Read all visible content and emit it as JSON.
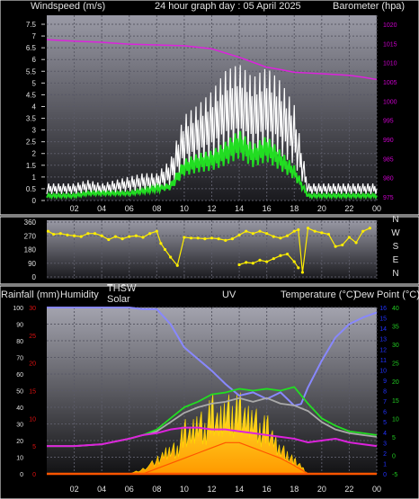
{
  "header": {
    "left_label": "Windspeed (m/s)",
    "center_label": "24 hour graph day : 05 April 2025",
    "right_label": "Barometer (hpa)"
  },
  "lower_header": {
    "rain_label": "Rainfall (mm)",
    "humidity_label": "Humidity",
    "thsw_label": "THSW",
    "solar_label": "Solar",
    "uv_label": "UV",
    "temp_label": "Temperature (°C)",
    "dew_label": "Dew Point (°C)"
  },
  "x_ticks": [
    "02",
    "04",
    "06",
    "08",
    "10",
    "12",
    "14",
    "16",
    "18",
    "20",
    "22",
    "00"
  ],
  "colors": {
    "windspeed": "#ffffff",
    "gust": "#ffffff",
    "avg_wind": "#22dd22",
    "barometer": "#dd22dd",
    "direction": "#ffee00",
    "humidity": "#8888ff",
    "temperature": "#22dd22",
    "thsw": "#aaaaaa",
    "dewpoint": "#dd22dd",
    "solar": "#ffcc00",
    "uv": "#ff5500",
    "rain_axis": "#dd1111",
    "temp_axis": "#22cc22",
    "humidity_axis": "#3344ff",
    "uv_axis": "#2233ff",
    "baro_axis": "#cc00cc"
  },
  "chart_data": [
    {
      "type": "line",
      "title": "24 hour graph day : 05 April 2025",
      "xlabel": "",
      "ylabel": "Windspeed (m/s)",
      "y2label": "Barometer (hpa)",
      "x_hours": [
        0,
        2,
        4,
        6,
        8,
        10,
        12,
        14,
        16,
        18,
        20,
        22,
        24
      ],
      "ylim": [
        0,
        7.5
      ],
      "y_ticks": [
        "0",
        "0.5",
        "1",
        "1.5",
        "2",
        "2.5",
        "3",
        "3.5",
        "4",
        "4.5",
        "5",
        "5.5",
        "6",
        "6.5",
        "7",
        "7.5"
      ],
      "y2lim": [
        975,
        1020
      ],
      "y2_ticks": [
        "975",
        "980",
        "985",
        "990",
        "995",
        "1000",
        "1005",
        "1010",
        "1015",
        "1020"
      ],
      "series": [
        {
          "name": "Windspeed",
          "axis": "left",
          "x": [
            0,
            1,
            2,
            3,
            4,
            5,
            6,
            7,
            8,
            9,
            10,
            11,
            12,
            13,
            14,
            15,
            16,
            17,
            18,
            19,
            20,
            21,
            22,
            23,
            24
          ],
          "values": [
            0.5,
            0.5,
            0.5,
            0.6,
            0.5,
            0.6,
            0.7,
            0.8,
            0.8,
            1.2,
            2.5,
            2.8,
            3.2,
            3.8,
            4.0,
            3.6,
            3.9,
            3.5,
            2.8,
            0.5,
            0.5,
            0.5,
            0.5,
            0.5,
            0.5
          ]
        },
        {
          "name": "Average wind",
          "axis": "left",
          "x": [
            0,
            1,
            2,
            3,
            4,
            5,
            6,
            7,
            8,
            9,
            10,
            11,
            12,
            13,
            14,
            15,
            16,
            17,
            18,
            19,
            20,
            21,
            22,
            23,
            24
          ],
          "values": [
            0.2,
            0.2,
            0.2,
            0.3,
            0.3,
            0.3,
            0.3,
            0.4,
            0.5,
            0.6,
            1.4,
            1.6,
            1.7,
            2.0,
            2.4,
            1.9,
            2.2,
            1.7,
            1.2,
            0.2,
            0.2,
            0.2,
            0.2,
            0.2,
            0.2
          ]
        },
        {
          "name": "Barometer",
          "axis": "right",
          "x": [
            0,
            2,
            4,
            6,
            8,
            10,
            12,
            13,
            14,
            15,
            16,
            17,
            18,
            19,
            20,
            21,
            22,
            23,
            24
          ],
          "values": [
            1016.0,
            1015.6,
            1015.3,
            1014.8,
            1014.6,
            1014.4,
            1013.6,
            1012.5,
            1011.4,
            1010.1,
            1008.8,
            1008.2,
            1007.5,
            1007.3,
            1007.1,
            1006.9,
            1006.7,
            1006.2,
            1005.6
          ]
        }
      ]
    },
    {
      "type": "scatter",
      "title": "",
      "ylabel": "",
      "x_hours": [
        0,
        2,
        4,
        6,
        8,
        10,
        12,
        14,
        16,
        18,
        20,
        22,
        24
      ],
      "ylim": [
        0,
        360
      ],
      "y_ticks": [
        "0",
        "90",
        "180",
        "270",
        "360"
      ],
      "compass_labels": [
        "N",
        "W",
        "S",
        "E",
        "N"
      ],
      "series": [
        {
          "name": "Wind direction",
          "x": [
            0.1,
            0.5,
            1.0,
            1.5,
            2.0,
            2.5,
            3.0,
            3.5,
            4.0,
            4.5,
            5.0,
            5.5,
            6.0,
            6.5,
            7.0,
            7.5,
            8.0,
            8.3,
            8.6,
            9.0,
            9.5,
            10.0,
            10.5,
            11.0,
            11.5,
            12.0,
            12.5,
            13.0,
            13.5,
            14.0,
            14.5,
            15.0,
            15.5,
            16.0,
            16.5,
            17.0,
            17.5,
            18.0,
            18.3,
            18.6,
            19.0,
            19.5,
            20.0,
            20.5,
            21.0,
            21.5,
            22.0,
            22.5,
            23.0,
            23.5
          ],
          "values": [
            300,
            280,
            285,
            275,
            270,
            265,
            285,
            285,
            270,
            245,
            265,
            250,
            265,
            270,
            260,
            285,
            300,
            220,
            180,
            130,
            75,
            260,
            255,
            255,
            250,
            255,
            250,
            240,
            250,
            275,
            300,
            285,
            300,
            285,
            265,
            255,
            270,
            300,
            310,
            30,
            320,
            300,
            290,
            280,
            200,
            210,
            260,
            225,
            300,
            320
          ]
        },
        {
          "name": "Wind direction (secondary)",
          "x": [
            14.0,
            14.5,
            15.0,
            15.5,
            16.0,
            16.5,
            17.0,
            17.5,
            18.0,
            18.3
          ],
          "values": [
            80,
            95,
            90,
            110,
            100,
            120,
            140,
            150,
            100,
            60
          ]
        }
      ]
    },
    {
      "type": "line",
      "title": "",
      "xlabel": "",
      "ylabel": "Humidity",
      "y2label": "Temperature (°C)",
      "x_hours": [
        0,
        2,
        4,
        6,
        8,
        10,
        12,
        14,
        16,
        18,
        20,
        22,
        24
      ],
      "humidity_lim": [
        0,
        100
      ],
      "humidity_ticks": [
        "0",
        "10",
        "20",
        "30",
        "40",
        "50",
        "60",
        "70",
        "80",
        "90",
        "100"
      ],
      "rain_lim": [
        0,
        30
      ],
      "rain_ticks": [
        "0",
        "5",
        "10",
        "15",
        "20",
        "25",
        "30"
      ],
      "uv_lim": [
        0,
        16
      ],
      "uv_ticks": [
        "0",
        "1",
        "2",
        "3",
        "4",
        "5",
        "6",
        "7",
        "8",
        "9",
        "10",
        "11",
        "12",
        "13",
        "14",
        "15",
        "16"
      ],
      "temp_lim": [
        -5,
        40
      ],
      "temp_ticks": [
        "-5",
        "0",
        "5",
        "10",
        "15",
        "20",
        "25",
        "30",
        "35",
        "40"
      ],
      "series": [
        {
          "name": "Humidity",
          "axis": "humidity",
          "x": [
            0,
            2,
            4,
            6,
            7,
            8,
            9,
            10,
            11,
            12,
            13,
            14,
            15,
            16,
            17,
            18,
            18.5,
            19,
            20,
            21,
            22,
            23,
            24
          ],
          "values": [
            100,
            100,
            100,
            100,
            99,
            99,
            90,
            76,
            69,
            62,
            54,
            47,
            49,
            45,
            49,
            41,
            42,
            52,
            68,
            82,
            90,
            94,
            97
          ]
        },
        {
          "name": "Temperature",
          "axis": "temperature",
          "x": [
            0,
            2,
            4,
            6,
            7,
            8,
            9,
            10,
            11,
            12,
            13,
            14,
            15,
            16,
            17,
            18,
            19,
            20,
            21,
            22,
            23,
            24
          ],
          "values": [
            2.5,
            2.5,
            3.0,
            4.5,
            5.5,
            7.0,
            10.0,
            13.0,
            14.5,
            16.5,
            17.0,
            18.0,
            17.5,
            18.0,
            17.5,
            18.5,
            14.0,
            10.0,
            8.0,
            6.5,
            6.0,
            5.5
          ]
        },
        {
          "name": "THSW",
          "axis": "temperature",
          "x": [
            0,
            2,
            4,
            6,
            7,
            8,
            9,
            10,
            11,
            12,
            13,
            14,
            15,
            16,
            17,
            18,
            19,
            20,
            21,
            22,
            23,
            24
          ],
          "values": [
            2.5,
            2.5,
            3.0,
            4.5,
            5.5,
            6.5,
            9.0,
            11.5,
            13.0,
            14.0,
            14.5,
            15.5,
            14.5,
            15.5,
            14.0,
            13.5,
            12.0,
            9.0,
            7.0,
            6.0,
            5.5,
            5.0
          ]
        },
        {
          "name": "Dew Point",
          "axis": "temperature",
          "x": [
            0,
            2,
            4,
            6,
            7,
            8,
            9,
            10,
            11,
            12,
            13,
            14,
            15,
            16,
            17,
            18,
            19,
            20,
            21,
            22,
            23,
            24
          ],
          "values": [
            2.5,
            2.5,
            3.0,
            4.5,
            5.5,
            6.0,
            7.0,
            7.5,
            7.5,
            7.0,
            7.0,
            6.5,
            6.0,
            5.5,
            5.0,
            4.5,
            3.5,
            4.0,
            4.5,
            3.5,
            3.0,
            2.5
          ]
        },
        {
          "name": "Solar",
          "axis": "uv",
          "x": [
            6,
            7,
            8,
            8.5,
            9,
            9.5,
            10,
            10.5,
            11,
            11.5,
            12,
            12.5,
            13,
            13.5,
            14,
            14.5,
            15,
            15.5,
            16,
            16.5,
            17,
            17.5,
            18,
            18.5,
            19
          ],
          "values": [
            0,
            0.5,
            1.5,
            2.0,
            3.0,
            2.5,
            5.0,
            4.0,
            6.5,
            4.5,
            7.5,
            5.0,
            8.0,
            6.0,
            7.5,
            5.5,
            7.0,
            4.5,
            5.5,
            3.5,
            3.0,
            2.0,
            1.5,
            0.8,
            0
          ]
        },
        {
          "name": "UV",
          "axis": "uv",
          "x": [
            7,
            8,
            9,
            10,
            11,
            12,
            13,
            14,
            15,
            16,
            17,
            18,
            19
          ],
          "values": [
            0,
            0.5,
            1.0,
            1.5,
            2.0,
            2.5,
            3.0,
            3.0,
            2.5,
            2.0,
            1.5,
            0.8,
            0
          ]
        },
        {
          "name": "Rainfall",
          "axis": "rain",
          "x": [
            0,
            24
          ],
          "values": [
            0,
            0
          ]
        }
      ]
    }
  ]
}
